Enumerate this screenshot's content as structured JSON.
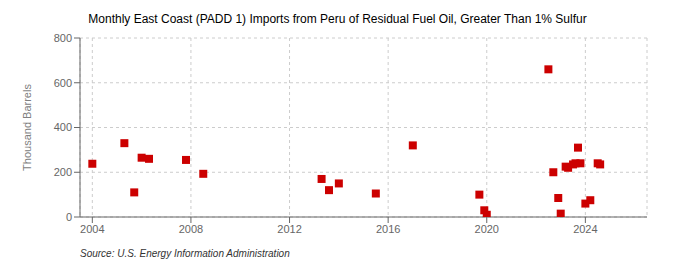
{
  "chart_data": {
    "type": "scatter",
    "title": "Monthly East Coast (PADD 1) Imports from Peru of Residual Fuel Oil, Greater Than 1% Sulfur",
    "ylabel": "Thousand Barrels",
    "source": "Source: U.S. Energy Information Administration",
    "color": "#cc0000",
    "marker": "square",
    "grid": true,
    "xlim": [
      2003.5,
      2026.5
    ],
    "xticks": [
      2004,
      2008,
      2012,
      2016,
      2020,
      2024
    ],
    "ylim": [
      0,
      800
    ],
    "yticks": [
      0,
      200,
      400,
      600,
      800
    ],
    "x": [
      2004.0,
      2005.3,
      2005.7,
      2006.0,
      2006.3,
      2007.8,
      2008.5,
      2013.3,
      2013.6,
      2015.5,
      2017.0,
      2014.0,
      2019.7,
      2019.9,
      2020.0,
      2022.5,
      2022.7,
      2022.9,
      2023.0,
      2023.2,
      2023.3,
      2023.5,
      2023.6,
      2023.7,
      2023.8,
      2024.0,
      2024.2,
      2024.5,
      2024.6
    ],
    "values": [
      238,
      330,
      110,
      265,
      260,
      255,
      193,
      170,
      120,
      105,
      320,
      150,
      100,
      30,
      10,
      660,
      200,
      85,
      15,
      225,
      220,
      235,
      240,
      310,
      240,
      60,
      75,
      240,
      235
    ]
  }
}
